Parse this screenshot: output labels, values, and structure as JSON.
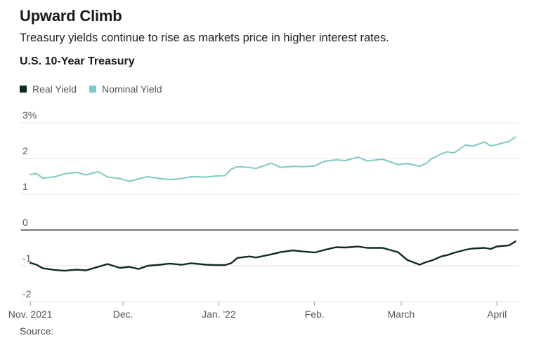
{
  "header": {
    "title": "Upward Climb",
    "subtitle": "Treasury yields continue to rise as markets price in higher interest rates.",
    "chart_label": "U.S. 10-Year Treasury"
  },
  "footer": {
    "source": "Source:"
  },
  "colors": {
    "real": "#0f2a22",
    "nominal": "#7fc9c4",
    "grid": "#e3e3e3",
    "zero": "#222222"
  },
  "chart_data": {
    "type": "line",
    "title": "U.S. 10-Year Treasury",
    "ylabel": "",
    "xlabel": "",
    "ylim": [
      -2,
      3
    ],
    "xlim": [
      "2021-10-29",
      "2022-04-08"
    ],
    "y_ticks": [
      {
        "value": 3,
        "label": "3%"
      },
      {
        "value": 2,
        "label": "2"
      },
      {
        "value": 1,
        "label": "1"
      },
      {
        "value": 0,
        "label": "0"
      },
      {
        "value": -1,
        "label": "-1"
      },
      {
        "value": -2,
        "label": "-2"
      }
    ],
    "x_ticks": [
      {
        "date": "2021-11-01",
        "label": "Nov. 2021"
      },
      {
        "date": "2021-12-01",
        "label": "Dec."
      },
      {
        "date": "2022-01-01",
        "label": "Jan. '22"
      },
      {
        "date": "2022-02-01",
        "label": "Feb."
      },
      {
        "date": "2022-03-01",
        "label": "March"
      },
      {
        "date": "2022-04-01",
        "label": "April"
      }
    ],
    "legend": "top-left",
    "grid": true,
    "series": [
      {
        "name": "Real Yield",
        "points": [
          [
            "2021-11-01",
            -0.92
          ],
          [
            "2021-11-03",
            -0.97
          ],
          [
            "2021-11-05",
            -1.07
          ],
          [
            "2021-11-09",
            -1.12
          ],
          [
            "2021-11-12",
            -1.14
          ],
          [
            "2021-11-16",
            -1.11
          ],
          [
            "2021-11-19",
            -1.13
          ],
          [
            "2021-11-23",
            -1.03
          ],
          [
            "2021-11-26",
            -0.95
          ],
          [
            "2021-11-30",
            -1.06
          ],
          [
            "2021-12-03",
            -1.03
          ],
          [
            "2021-12-06",
            -1.09
          ],
          [
            "2021-12-09",
            -1.0
          ],
          [
            "2021-12-13",
            -0.97
          ],
          [
            "2021-12-16",
            -0.94
          ],
          [
            "2021-12-20",
            -0.97
          ],
          [
            "2021-12-23",
            -0.93
          ],
          [
            "2021-12-28",
            -0.97
          ],
          [
            "2021-12-31",
            -0.98
          ],
          [
            "2022-01-03",
            -0.98
          ],
          [
            "2022-01-05",
            -0.93
          ],
          [
            "2022-01-07",
            -0.78
          ],
          [
            "2022-01-11",
            -0.74
          ],
          [
            "2022-01-13",
            -0.77
          ],
          [
            "2022-01-18",
            -0.68
          ],
          [
            "2022-01-21",
            -0.62
          ],
          [
            "2022-01-25",
            -0.57
          ],
          [
            "2022-01-28",
            -0.6
          ],
          [
            "2022-02-01",
            -0.63
          ],
          [
            "2022-02-04",
            -0.56
          ],
          [
            "2022-02-08",
            -0.48
          ],
          [
            "2022-02-11",
            -0.49
          ],
          [
            "2022-02-15",
            -0.46
          ],
          [
            "2022-02-18",
            -0.5
          ],
          [
            "2022-02-23",
            -0.5
          ],
          [
            "2022-02-28",
            -0.62
          ],
          [
            "2022-03-03",
            -0.84
          ],
          [
            "2022-03-07",
            -0.97
          ],
          [
            "2022-03-09",
            -0.9
          ],
          [
            "2022-03-11",
            -0.85
          ],
          [
            "2022-03-14",
            -0.74
          ],
          [
            "2022-03-16",
            -0.7
          ],
          [
            "2022-03-18",
            -0.64
          ],
          [
            "2022-03-22",
            -0.55
          ],
          [
            "2022-03-24",
            -0.52
          ],
          [
            "2022-03-28",
            -0.5
          ],
          [
            "2022-03-30",
            -0.53
          ],
          [
            "2022-04-01",
            -0.46
          ],
          [
            "2022-04-05",
            -0.43
          ],
          [
            "2022-04-07",
            -0.32
          ]
        ]
      },
      {
        "name": "Nominal Yield",
        "points": [
          [
            "2021-11-01",
            1.55
          ],
          [
            "2021-11-03",
            1.58
          ],
          [
            "2021-11-05",
            1.45
          ],
          [
            "2021-11-09",
            1.49
          ],
          [
            "2021-11-12",
            1.57
          ],
          [
            "2021-11-16",
            1.61
          ],
          [
            "2021-11-19",
            1.54
          ],
          [
            "2021-11-23",
            1.63
          ],
          [
            "2021-11-26",
            1.48
          ],
          [
            "2021-11-30",
            1.44
          ],
          [
            "2021-12-03",
            1.36
          ],
          [
            "2021-12-06",
            1.43
          ],
          [
            "2021-12-09",
            1.49
          ],
          [
            "2021-12-13",
            1.44
          ],
          [
            "2021-12-16",
            1.41
          ],
          [
            "2021-12-20",
            1.44
          ],
          [
            "2021-12-23",
            1.49
          ],
          [
            "2021-12-28",
            1.48
          ],
          [
            "2021-12-31",
            1.51
          ],
          [
            "2022-01-03",
            1.52
          ],
          [
            "2022-01-05",
            1.7
          ],
          [
            "2022-01-07",
            1.77
          ],
          [
            "2022-01-11",
            1.75
          ],
          [
            "2022-01-13",
            1.72
          ],
          [
            "2022-01-18",
            1.87
          ],
          [
            "2022-01-21",
            1.75
          ],
          [
            "2022-01-25",
            1.78
          ],
          [
            "2022-01-28",
            1.77
          ],
          [
            "2022-02-01",
            1.79
          ],
          [
            "2022-02-04",
            1.92
          ],
          [
            "2022-02-08",
            1.96
          ],
          [
            "2022-02-11",
            1.94
          ],
          [
            "2022-02-15",
            2.04
          ],
          [
            "2022-02-18",
            1.93
          ],
          [
            "2022-02-23",
            1.98
          ],
          [
            "2022-02-28",
            1.83
          ],
          [
            "2022-03-03",
            1.86
          ],
          [
            "2022-03-07",
            1.78
          ],
          [
            "2022-03-09",
            1.86
          ],
          [
            "2022-03-11",
            2.0
          ],
          [
            "2022-03-14",
            2.13
          ],
          [
            "2022-03-16",
            2.19
          ],
          [
            "2022-03-18",
            2.15
          ],
          [
            "2022-03-22",
            2.38
          ],
          [
            "2022-03-24",
            2.34
          ],
          [
            "2022-03-28",
            2.46
          ],
          [
            "2022-03-30",
            2.35
          ],
          [
            "2022-04-01",
            2.39
          ],
          [
            "2022-04-05",
            2.48
          ],
          [
            "2022-04-07",
            2.6
          ]
        ]
      }
    ]
  }
}
